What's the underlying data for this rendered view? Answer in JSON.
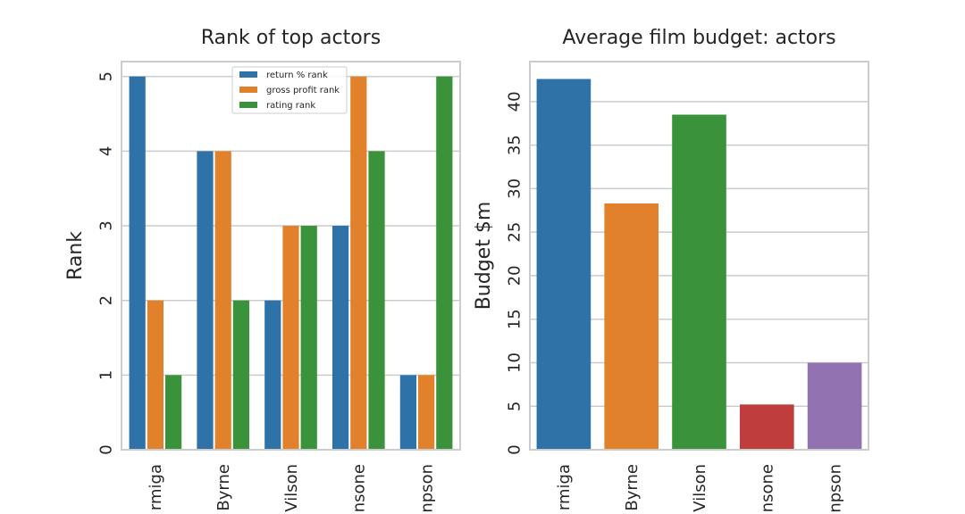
{
  "chart_data": [
    {
      "type": "bar",
      "title": "Rank of top actors",
      "xlabel": "",
      "ylabel": "Rank",
      "ylim": [
        0,
        5.2
      ],
      "yticks": [
        "0",
        "1",
        "2",
        "3",
        "4",
        "5"
      ],
      "categories": [
        "rmiga",
        "Byrne",
        "Vilson",
        "nsone",
        "npson"
      ],
      "legend": "top-center",
      "grid": true,
      "series": [
        {
          "name": "return % rank",
          "color": "#2e72a8",
          "values": [
            5,
            4,
            2,
            3,
            1
          ]
        },
        {
          "name": "gross profit rank",
          "color": "#e1812b",
          "values": [
            2,
            4,
            3,
            5,
            1
          ]
        },
        {
          "name": "rating rank",
          "color": "#3a923a",
          "values": [
            1,
            2,
            3,
            4,
            5
          ]
        }
      ]
    },
    {
      "type": "bar",
      "title": "Average film budget: actors",
      "xlabel": "",
      "ylabel": "Budget $m",
      "ylim": [
        0,
        44.6
      ],
      "yticks": [
        "0",
        "5",
        "10",
        "15",
        "20",
        "25",
        "30",
        "35",
        "40"
      ],
      "categories": [
        "rmiga",
        "Byrne",
        "Vilson",
        "nsone",
        "npson"
      ],
      "grid": true,
      "colors": [
        "#2e72a8",
        "#e1812b",
        "#3a923a",
        "#c03d3e",
        "#9372b2"
      ],
      "values": [
        42.6,
        28.3,
        38.5,
        5.2,
        10.0
      ]
    }
  ]
}
